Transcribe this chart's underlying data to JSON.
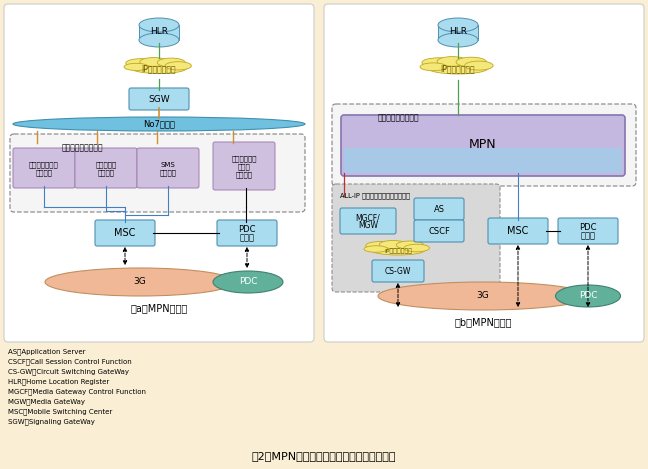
{
  "bg_color": "#faefd4",
  "panel_bg": "#ffffff",
  "title": "図2　MPNのコアネットワーク内の位置付け",
  "label_a": "（a）MPN導入前",
  "label_b": "（b）MPN導入後",
  "legend_lines": [
    "AS：Application Server",
    "CSCF：Call Session Control Function",
    "CS-GW：Circuit Switching GateWay",
    "HLR：Home Location Register",
    "MGCF：Media Gateway Control Function",
    "MGW：Media GateWay",
    "MSC：Mobile Switching Center",
    "SGW：Signaling GateWay"
  ],
  "box_blue_fill": "#aadcf0",
  "box_blue_edge": "#5090b0",
  "box_purple_fill": "#d0c0e0",
  "box_purple_border": "#a080b0",
  "cloud_fill": "#f5e87a",
  "cloud_edge": "#c0a820",
  "ellipse_3g_fill": "#f0b896",
  "ellipse_3g_edge": "#c09060",
  "ellipse_pdc_fill": "#60b09a",
  "ellipse_pdc_edge": "#408070",
  "no7_fill": "#70c0e0",
  "no7_edge": "#4090b0",
  "dashed_color": "#909090",
  "media_fill": "#f5f5f5",
  "allip_fill": "#d8d8d8",
  "allip_edge": "#909090",
  "mpn_fill_top": "#c8c0e8",
  "mpn_fill_bot": "#b0c8e8",
  "mpn_edge": "#8878b0",
  "green_line": "#50a050",
  "orange_line": "#d09030",
  "blue_line": "#4080c0",
  "red_line": "#c03030"
}
